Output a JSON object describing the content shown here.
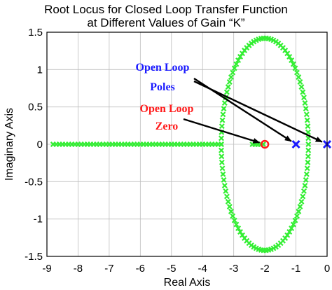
{
  "chart_data": {
    "type": "scatter",
    "title": [
      "Root Locus for Closed Loop Transfer Function",
      "at Different Values of Gain “K”"
    ],
    "xlabel": "Real Axis",
    "ylabel": "Imaginary Axis",
    "xlim": [
      -9,
      0
    ],
    "ylim": [
      -1.5,
      1.5
    ],
    "grid": true,
    "x_ticks": [
      -9,
      -8,
      -7,
      -6,
      -5,
      -4,
      -3,
      -2,
      -1,
      0
    ],
    "y_ticks": [
      -1.5,
      -1,
      -0.5,
      0,
      0.5,
      1,
      1.5
    ],
    "x_tick_labels": [
      "-9",
      "-8",
      "-7",
      "-6",
      "-5",
      "-4",
      "-3",
      "-2",
      "-1",
      "0"
    ],
    "y_tick_labels": [
      "-1.5",
      "-1",
      "-0.5",
      "0",
      "0.5",
      "1",
      "1.5"
    ],
    "locus_color": "#33ee33",
    "pole_color": "#1a1aff",
    "zero_color": "#ff1a1a",
    "locus": {
      "ellipse": {
        "center": [
          -2,
          0
        ],
        "real_semi_axis": 1.4,
        "imag_semi_axis": 1.42
      },
      "real_axis_segments": [
        {
          "from": -8.8,
          "to": -3.4
        },
        {
          "from": -2.4,
          "to": -2.05
        }
      ]
    },
    "poles": [
      {
        "x": -1,
        "y": 0
      },
      {
        "x": 0,
        "y": 0
      }
    ],
    "zeros": [
      {
        "x": -2,
        "y": 0
      }
    ],
    "annotations": [
      {
        "lines": [
          "Open Loop",
          "Poles"
        ],
        "color": "#1a1aff",
        "arrow_targets": [
          [
            -1,
            0
          ],
          [
            0,
            0
          ]
        ]
      },
      {
        "lines": [
          "Open Loop",
          "Zero"
        ],
        "color": "#ff1a1a",
        "arrow_targets": [
          [
            -2,
            0
          ]
        ]
      }
    ]
  }
}
